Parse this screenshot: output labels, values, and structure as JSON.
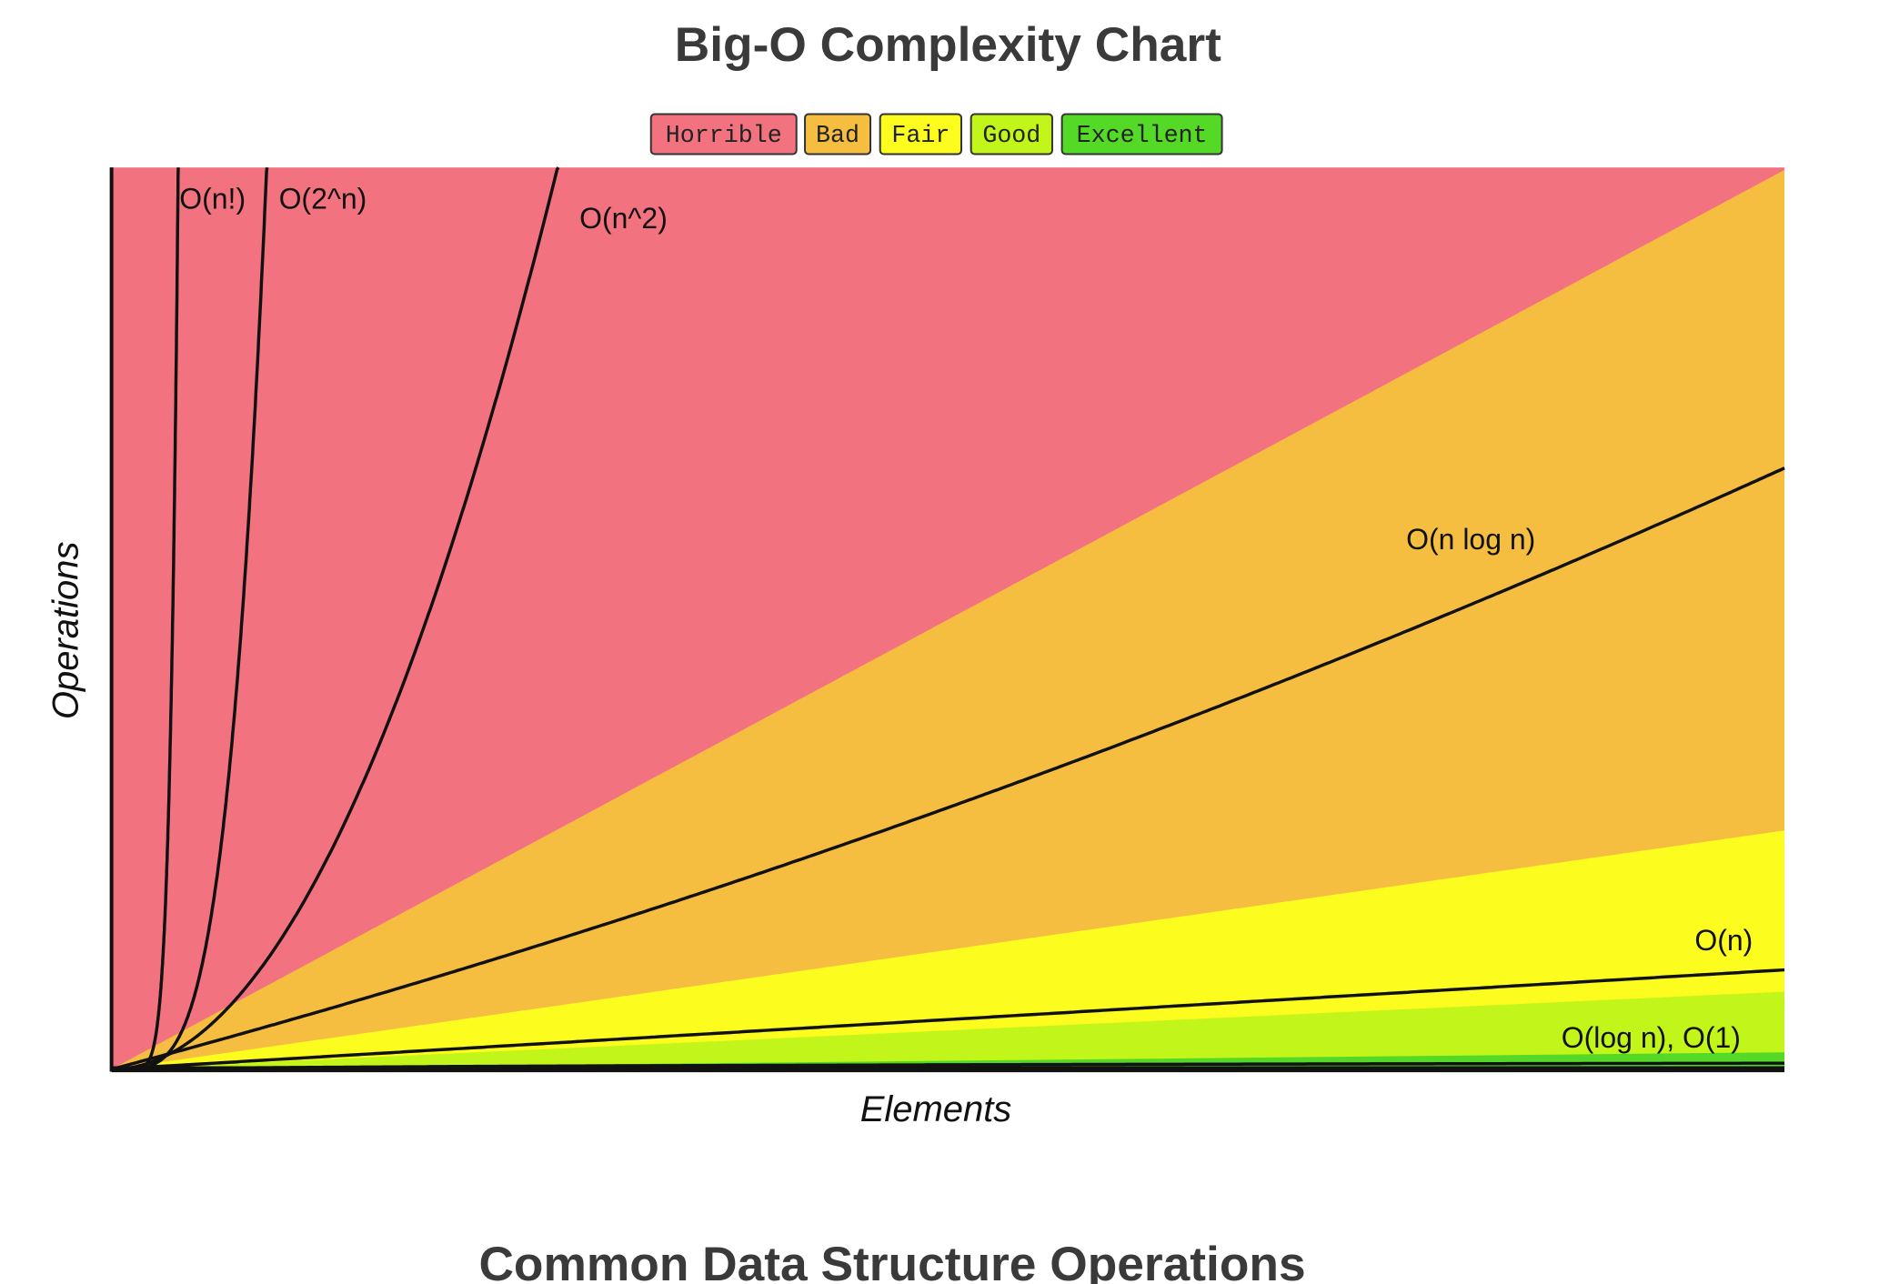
{
  "chart_data": {
    "type": "area",
    "title": "Big-O Complexity Chart",
    "legend": [
      {
        "name": "Horrible",
        "color": "#f37280"
      },
      {
        "name": "Bad",
        "color": "#f6be41"
      },
      {
        "name": "Fair",
        "color": "#fcfc1e"
      },
      {
        "name": "Good",
        "color": "#c2f519"
      },
      {
        "name": "Excellent",
        "color": "#53d926"
      }
    ],
    "curve_labels": [
      "O(n!)",
      "O(2^n)",
      "O(n^2)",
      "O(n log n)",
      "O(n)",
      "O(log n), O(1)"
    ],
    "xlabel": "Elements",
    "ylabel": "Operations"
  },
  "section_heading": "Common Data Structure Operations"
}
